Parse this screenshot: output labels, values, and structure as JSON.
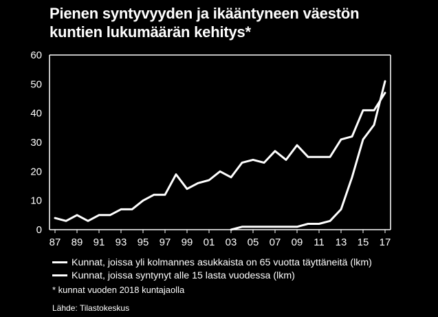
{
  "title_line1": "Pienen syntyvyyden ja ikääntyneen väestön",
  "title_line2": "kuntien lukumäärän kehitys*",
  "footnote": "* kunnat vuoden 2018 kuntajaolla",
  "source": "Lähde: Tilastokeskus",
  "colors": {
    "background": "#000000",
    "line": "#ffffff"
  },
  "chart_data": {
    "type": "line",
    "title": "Pienen syntyvyyden ja ikääntyneen väestön kuntien lukumäärän kehitys*",
    "xlabel": "",
    "ylabel": "",
    "ylim": [
      0,
      60
    ],
    "yticks": [
      "0",
      "10",
      "20",
      "30",
      "40",
      "50",
      "60"
    ],
    "xticks": [
      "87",
      "89",
      "91",
      "93",
      "95",
      "97",
      "99",
      "01",
      "03",
      "05",
      "07",
      "09",
      "11",
      "13",
      "15",
      "17"
    ],
    "x": [
      1987,
      1988,
      1989,
      1990,
      1991,
      1992,
      1993,
      1994,
      1995,
      1996,
      1997,
      1998,
      1999,
      2000,
      2001,
      2002,
      2003,
      2004,
      2005,
      2006,
      2007,
      2008,
      2009,
      2010,
      2011,
      2012,
      2013,
      2014,
      2015,
      2016,
      2017
    ],
    "grid": false,
    "legend_position": "bottom",
    "series": [
      {
        "name": "Kunnat, joissa yli kolmannes asukkaista on 65 vuotta täyttäneitä (lkm)",
        "values": [
          4,
          3,
          5,
          3,
          5,
          5,
          7,
          7,
          10,
          12,
          12,
          19,
          14,
          16,
          17,
          20,
          18,
          23,
          24,
          23,
          27,
          24,
          29,
          25,
          25,
          25,
          31,
          32,
          41,
          41,
          47
        ]
      },
      {
        "name": "Kunnat, joissa syntynyt alle 15 lasta vuodessa (lkm)",
        "values": [
          null,
          null,
          null,
          null,
          null,
          null,
          null,
          null,
          null,
          null,
          null,
          null,
          null,
          null,
          null,
          null,
          0,
          1,
          1,
          1,
          1,
          1,
          1,
          2,
          2,
          3,
          7,
          18,
          31,
          36,
          51
        ]
      }
    ]
  }
}
